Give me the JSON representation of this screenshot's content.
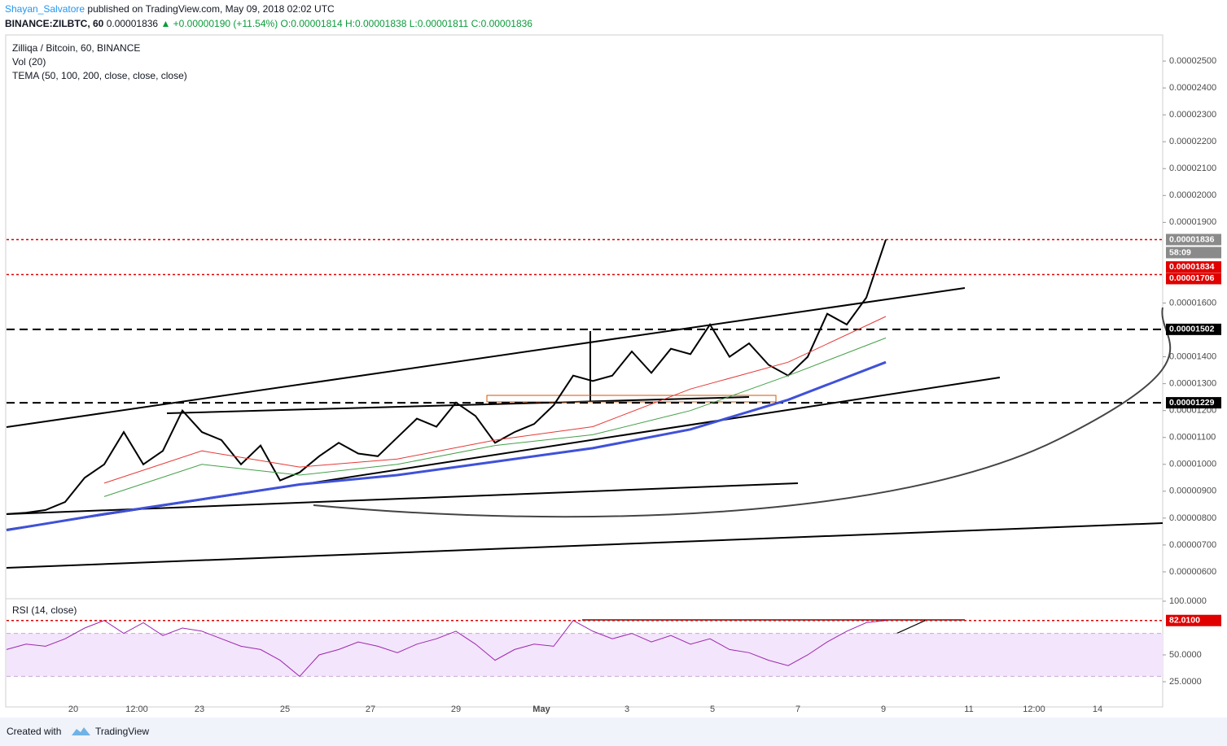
{
  "header": {
    "author": "Shayan_Salvatore",
    "published": " published on TradingView.com, May 09, 2018 02:02 UTC",
    "symbol": "BINANCE:ZILBTC, 60",
    "last": "0.00001836",
    "change": "▲ +0.00000190 (+11.54%)",
    "open": "O:0.00001814",
    "high": "H:0.00001838",
    "low": "L:0.00001811",
    "close": "C:0.00001836"
  },
  "chart_data": {
    "type": "line",
    "title": "Zilliqa / Bitcoin, 60, BINANCE",
    "indicators": [
      "Vol (20)",
      "TEMA (50, 100, 200, close, close, close)"
    ],
    "x_labels": [
      "20",
      "12:00",
      "23",
      "25",
      "27",
      "29",
      "May",
      "3",
      "5",
      "7",
      "9",
      "11",
      "12:00",
      "14"
    ],
    "series": [
      {
        "color": "#000000",
        "values": [
          8.15e-06,
          8.2e-06,
          8.3e-06,
          8.6e-06,
          9.5e-06,
          1e-05,
          1.12e-05,
          1e-05,
          1.05e-05,
          1.2e-05,
          1.12e-05,
          1.09e-05,
          1e-05,
          1.07e-05,
          9.4e-06,
          9.7e-06,
          1.03e-05,
          1.08e-05,
          1.04e-05,
          1.03e-05,
          1.1e-05,
          1.17e-05,
          1.14e-05,
          1.23e-05,
          1.18e-05,
          1.08e-05,
          1.12e-05,
          1.15e-05,
          1.22e-05,
          1.33e-05,
          1.31e-05,
          1.33e-05,
          1.42e-05,
          1.34e-05,
          1.43e-05,
          1.41e-05,
          1.52e-05,
          1.4e-05,
          1.45e-05,
          1.37e-05,
          1.33e-05,
          1.4e-05,
          1.56e-05,
          1.52e-05,
          1.62e-05,
          1.836e-05
        ]
      },
      {
        "color": "#e53935",
        "values": [
          null,
          9.3e-06,
          1.05e-05,
          9.9e-06,
          1.02e-05,
          1.09e-05,
          1.14e-05,
          1.28e-05,
          1.38e-05,
          1.55e-05
        ]
      },
      {
        "color": "#43a047",
        "values": [
          null,
          8.8e-06,
          1e-05,
          9.6e-06,
          1e-05,
          1.07e-05,
          1.11e-05,
          1.2e-05,
          1.33e-05,
          1.47e-05
        ]
      },
      {
        "color": "#3f51d9",
        "values": [
          7.55e-06,
          8.15e-06,
          8.7e-06,
          9.25e-06,
          9.6e-06,
          1.01e-05,
          1.06e-05,
          1.13e-05,
          1.24e-05,
          1.38e-05
        ]
      }
    ],
    "ylim": [
      5.03e-06,
      2.594e-05
    ],
    "yticks": [
      {
        "value": 2.5e-05,
        "label": "0.00002500"
      },
      {
        "value": 2.4e-05,
        "label": "0.00002400"
      },
      {
        "value": 2.3e-05,
        "label": "0.00002300"
      },
      {
        "value": 2.2e-05,
        "label": "0.00002200"
      },
      {
        "value": 2.1e-05,
        "label": "0.00002100"
      },
      {
        "value": 2e-05,
        "label": "0.00002000"
      },
      {
        "value": 1.9e-05,
        "label": "0.00001900"
      },
      {
        "value": 1.6e-05,
        "label": "0.00001600"
      },
      {
        "value": 1.4e-05,
        "label": "0.00001400"
      },
      {
        "value": 1.3e-05,
        "label": "0.00001300"
      },
      {
        "value": 1.2e-05,
        "label": "0.00001200"
      },
      {
        "value": 1.1e-05,
        "label": "0.00001100"
      },
      {
        "value": 1e-05,
        "label": "0.00001000"
      },
      {
        "value": 9e-06,
        "label": "0.00000900"
      },
      {
        "value": 8e-06,
        "label": "0.00000800"
      },
      {
        "value": 7e-06,
        "label": "0.00000700"
      },
      {
        "value": 6e-06,
        "label": "0.00000600"
      }
    ],
    "levels": [
      {
        "value": 1.836e-05,
        "label": "0.00001836",
        "color": "#e00000",
        "dash": "dotted",
        "tag_color": "#8a8a8a"
      },
      {
        "value": 1.706e-05,
        "label": "0.00001706",
        "color": "#e00000",
        "dash": "dotted",
        "tag_color": "#e00000"
      },
      {
        "value": 1.502e-05,
        "label": "0.00001502",
        "color": "#000000",
        "dash": "dashed",
        "tag_color": "#000000"
      },
      {
        "value": 1.229e-05,
        "label": "0.00001229",
        "color": "#000000",
        "dash": "dashed",
        "tag_color": "#000000"
      }
    ],
    "countdown": "58:09",
    "bid_tag": {
      "value": 1.834e-05,
      "label": "0.00001834"
    },
    "rsi": {
      "title": "RSI (14, close)",
      "color": "#9c27b0",
      "values": [
        55,
        60,
        58,
        65,
        75,
        82,
        70,
        80,
        68,
        75,
        72,
        65,
        58,
        55,
        45,
        30,
        50,
        55,
        62,
        58,
        52,
        60,
        65,
        72,
        60,
        45,
        55,
        60,
        58,
        82,
        72,
        65,
        70,
        62,
        68,
        60,
        65,
        55,
        52,
        45,
        40,
        50,
        62,
        72,
        80,
        82
      ],
      "ylim": [
        2.27,
        101.5
      ],
      "yticks": [
        {
          "value": 100,
          "label": "100.0000"
        },
        {
          "value": 50,
          "label": "50.0000"
        },
        {
          "value": 25,
          "label": "25.0000"
        }
      ],
      "band": [
        30,
        70
      ],
      "level": {
        "value": 82.01,
        "label": "82.0100"
      }
    }
  },
  "footer": {
    "created": "Created with",
    "brand": "TradingView"
  }
}
